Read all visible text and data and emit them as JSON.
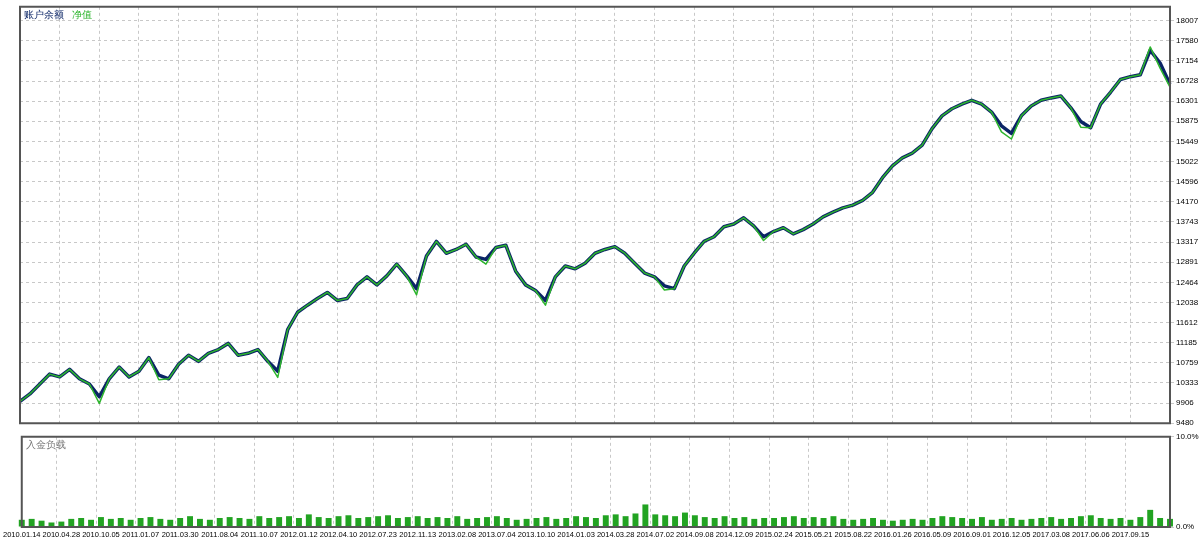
{
  "chart_data": [
    {
      "type": "line",
      "legend": "top left",
      "grid": true,
      "tick_labels": "y",
      "marker": "none",
      "line_style": "solid",
      "categories": [
        "2010.01.14",
        null,
        null,
        null,
        "2010.04.28",
        null,
        null,
        null,
        "2010.10.05",
        null,
        null,
        null,
        "2011.01.07",
        null,
        null,
        null,
        "2011.03.30",
        null,
        null,
        null,
        "2011.08.04",
        null,
        null,
        null,
        "2011.10.07",
        null,
        null,
        null,
        "2012.01.12",
        null,
        null,
        null,
        "2012.04.10",
        null,
        null,
        null,
        "2012.07.23",
        null,
        null,
        null,
        "2012.11.13",
        null,
        null,
        null,
        "2013.02.08",
        null,
        null,
        null,
        "2013.07.04",
        null,
        null,
        null,
        "2013.10.10",
        null,
        null,
        null,
        "2014.01.03",
        null,
        null,
        null,
        "2014.03.28",
        null,
        null,
        null,
        "2014.07.02",
        null,
        null,
        null,
        "2014.09.08",
        null,
        null,
        null,
        "2014.12.09",
        null,
        null,
        null,
        "2015.02.24",
        null,
        null,
        null,
        "2015.05.21",
        null,
        null,
        null,
        "2015.08.22",
        null,
        null,
        null,
        "2016.01.26",
        null,
        null,
        null,
        "2016.05.09",
        null,
        null,
        null,
        "2016.09.01",
        null,
        null,
        null,
        "2016.12.05",
        null,
        null,
        null,
        "2017.03.08",
        null,
        null,
        null,
        "2017.06.06",
        null,
        null,
        null,
        "2017.09.15",
        null,
        null,
        null,
        null
      ],
      "ylim": [
        9480,
        18300
      ],
      "yticks": [
        9480,
        9906,
        10333,
        10759,
        11185,
        11612,
        12038,
        12464,
        12891,
        13317,
        13743,
        14170,
        14596,
        15022,
        15449,
        15875,
        16301,
        16728,
        17154,
        17580,
        18007
      ],
      "series": [
        {
          "name": "账户余额",
          "color": "#0b2566",
          "values": [
            9940,
            10100,
            10310,
            10520,
            10460,
            10620,
            10420,
            10310,
            10040,
            10420,
            10670,
            10460,
            10580,
            10870,
            10500,
            10420,
            10730,
            10920,
            10790,
            10960,
            11040,
            11170,
            10920,
            10960,
            11040,
            10790,
            10580,
            11460,
            11830,
            11980,
            12120,
            12250,
            12080,
            12120,
            12410,
            12580,
            12410,
            12600,
            12850,
            12600,
            12330,
            13020,
            13330,
            13080,
            13160,
            13270,
            13000,
            12950,
            13200,
            13250,
            12700,
            12410,
            12290,
            12080,
            12580,
            12810,
            12750,
            12870,
            13080,
            13160,
            13220,
            13080,
            12870,
            12660,
            12580,
            12390,
            12330,
            12810,
            13080,
            13330,
            13430,
            13640,
            13700,
            13830,
            13660,
            13430,
            13540,
            13620,
            13490,
            13580,
            13700,
            13850,
            13950,
            14040,
            14100,
            14200,
            14370,
            14680,
            14930,
            15100,
            15200,
            15370,
            15720,
            15990,
            16140,
            16240,
            16320,
            16240,
            16070,
            15780,
            15620,
            15990,
            16200,
            16320,
            16370,
            16410,
            16160,
            15870,
            15740,
            16240,
            16490,
            16760,
            16820,
            16860,
            17380,
            17110,
            16660
          ]
        },
        {
          "name": "净值",
          "color": "#2db52d",
          "values": [
            9940,
            10100,
            10310,
            10520,
            10460,
            10620,
            10420,
            10310,
            9900,
            10420,
            10670,
            10460,
            10580,
            10870,
            10400,
            10420,
            10730,
            10920,
            10790,
            10960,
            11040,
            11170,
            10920,
            10960,
            11040,
            10790,
            10450,
            11460,
            11830,
            11980,
            12120,
            12250,
            12080,
            12120,
            12410,
            12580,
            12410,
            12600,
            12850,
            12600,
            12200,
            13020,
            13330,
            13080,
            13160,
            13270,
            13000,
            12850,
            13200,
            13250,
            12700,
            12410,
            12290,
            11980,
            12580,
            12810,
            12750,
            12870,
            13080,
            13160,
            13220,
            13080,
            12870,
            12660,
            12580,
            12300,
            12330,
            12810,
            13080,
            13330,
            13430,
            13640,
            13700,
            13830,
            13660,
            13350,
            13540,
            13620,
            13490,
            13580,
            13700,
            13850,
            13950,
            14040,
            14100,
            14200,
            14370,
            14680,
            14930,
            15100,
            15200,
            15370,
            15720,
            15990,
            16140,
            16240,
            16320,
            16240,
            16070,
            15650,
            15500,
            15990,
            16200,
            16320,
            16370,
            16410,
            16160,
            15750,
            15740,
            16240,
            16490,
            16760,
            16820,
            16860,
            17450,
            17000,
            16600
          ]
        }
      ]
    },
    {
      "type": "bar",
      "title": "入金负载",
      "grid": true,
      "color": "#22a322",
      "categories": [
        "2010.01.14",
        null,
        null,
        null,
        "2010.04.28",
        null,
        null,
        null,
        "2010.10.05",
        null,
        null,
        null,
        "2011.01.07",
        null,
        null,
        null,
        "2011.03.30",
        null,
        null,
        null,
        "2011.08.04",
        null,
        null,
        null,
        "2011.10.07",
        null,
        null,
        null,
        "2012.01.12",
        null,
        null,
        null,
        "2012.04.10",
        null,
        null,
        null,
        "2012.07.23",
        null,
        null,
        null,
        "2012.11.13",
        null,
        null,
        null,
        "2013.02.08",
        null,
        null,
        null,
        "2013.07.04",
        null,
        null,
        null,
        "2013.10.10",
        null,
        null,
        null,
        "2014.01.03",
        null,
        null,
        null,
        "2014.03.28",
        null,
        null,
        null,
        "2014.07.02",
        null,
        null,
        null,
        "2014.09.08",
        null,
        null,
        null,
        "2014.12.09",
        null,
        null,
        null,
        "2015.02.24",
        null,
        null,
        null,
        "2015.05.21",
        null,
        null,
        null,
        "2015.08.22",
        null,
        null,
        null,
        "2016.01.26",
        null,
        null,
        null,
        "2016.05.09",
        null,
        null,
        null,
        "2016.09.01",
        null,
        null,
        null,
        "2016.12.05",
        null,
        null,
        null,
        "2017.03.08",
        null,
        null,
        null,
        "2017.06.06",
        null,
        null,
        null,
        "2017.09.15",
        null,
        null,
        null,
        null
      ],
      "ylim": [
        0,
        10
      ],
      "yticks": [
        {
          "value": 0,
          "label": "0.0%"
        },
        {
          "value": 10,
          "label": "10.0%"
        }
      ],
      "values": [
        0.8,
        0.9,
        0.7,
        0.5,
        0.6,
        0.9,
        1.0,
        0.8,
        1.1,
        0.9,
        1.0,
        0.8,
        1.0,
        1.1,
        0.9,
        0.8,
        1.0,
        1.2,
        0.9,
        0.8,
        1.0,
        1.1,
        1.0,
        0.9,
        1.2,
        1.0,
        1.1,
        1.2,
        1.0,
        1.4,
        1.1,
        1.0,
        1.2,
        1.3,
        1.0,
        1.1,
        1.2,
        1.3,
        1.0,
        1.1,
        1.2,
        1.0,
        1.1,
        1.0,
        1.2,
        0.9,
        1.0,
        1.1,
        1.2,
        1.0,
        0.8,
        0.9,
        1.0,
        1.1,
        0.9,
        1.0,
        1.2,
        1.1,
        1.0,
        1.3,
        1.4,
        1.2,
        1.5,
        2.5,
        1.4,
        1.3,
        1.2,
        1.6,
        1.3,
        1.1,
        1.0,
        1.2,
        1.0,
        1.1,
        0.9,
        1.0,
        1.0,
        1.1,
        1.2,
        1.0,
        1.1,
        1.0,
        1.2,
        0.9,
        0.8,
        0.9,
        1.0,
        0.8,
        0.7,
        0.8,
        0.9,
        0.8,
        1.0,
        1.2,
        1.1,
        1.0,
        0.9,
        1.1,
        0.8,
        0.9,
        1.0,
        0.8,
        0.9,
        1.0,
        1.1,
        0.9,
        1.0,
        1.2,
        1.3,
        1.0,
        0.9,
        1.0,
        0.8,
        1.1,
        1.9,
        1.0,
        0.9
      ]
    }
  ]
}
